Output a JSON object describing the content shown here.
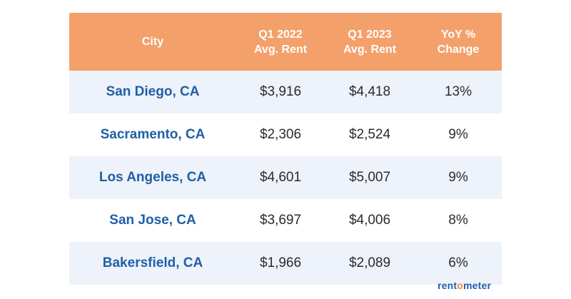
{
  "table": {
    "headers": [
      {
        "line1": "City",
        "line2": ""
      },
      {
        "line1": "Q1 2022",
        "line2": "Avg. Rent"
      },
      {
        "line1": "Q1 2023",
        "line2": "Avg. Rent"
      },
      {
        "line1": "YoY %",
        "line2": "Change"
      }
    ],
    "rows": [
      {
        "city": "San Diego, CA",
        "q1_2022": "$3,916",
        "q1_2023": "$4,418",
        "yoy": "13%"
      },
      {
        "city": "Sacramento, CA",
        "q1_2022": "$2,306",
        "q1_2023": "$2,524",
        "yoy": "9%"
      },
      {
        "city": "Los Angeles, CA",
        "q1_2022": "$4,601",
        "q1_2023": "$5,007",
        "yoy": "9%"
      },
      {
        "city": "San Jose, CA",
        "q1_2022": "$3,697",
        "q1_2023": "$4,006",
        "yoy": "8%"
      },
      {
        "city": "Bakersfield, CA",
        "q1_2022": "$1,966",
        "q1_2023": "$2,089",
        "yoy": "6%"
      }
    ]
  },
  "logo": {
    "part1": "rent",
    "part2": "o",
    "part3": "meter"
  },
  "colors": {
    "header_bg": "#f4a06b",
    "row_alt_bg": "#eef2fa",
    "city_text": "#1f5fa6",
    "logo_accent": "#f08a3c"
  }
}
